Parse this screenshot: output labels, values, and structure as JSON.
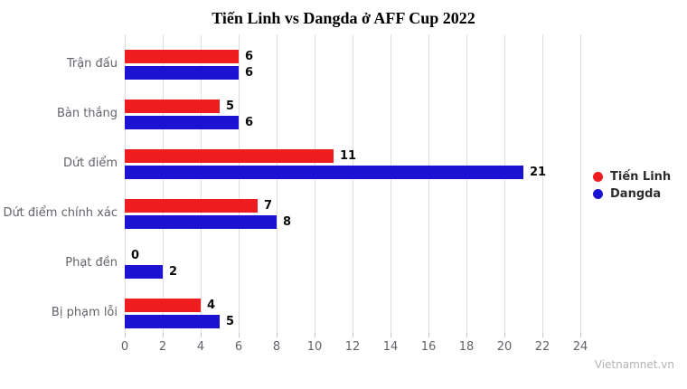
{
  "title": "Tiến Linh vs Dangda ở AFF Cup 2022",
  "watermark": "Vietnamnet.vn",
  "colors": {
    "tien_linh_red": "#ef1c20",
    "dangda_blue": "#1c13d2",
    "gridline": "#dedede",
    "axis_text": "#63636b",
    "value_text": "#0a0a0a"
  },
  "legend": {
    "position": "right",
    "items": [
      {
        "label": "Tiến Linh",
        "color": "#ef1c20"
      },
      {
        "label": "Dangda",
        "color": "#1c13d2"
      }
    ]
  },
  "chart_data": {
    "type": "bar",
    "orientation": "horizontal",
    "title": "Tiến Linh vs Dangda ở AFF Cup 2022",
    "categories": [
      "Trận đấu",
      "Bàn thắng",
      "Dứt điểm",
      "Dứt điểm chính xác",
      "Phạt đền",
      "Bị phạm lỗi"
    ],
    "series": [
      {
        "name": "Tiến Linh",
        "color": "#ef1c20",
        "values": [
          6,
          5,
          11,
          7,
          0,
          4
        ]
      },
      {
        "name": "Dangda",
        "color": "#1c13d2",
        "values": [
          6,
          6,
          21,
          8,
          2,
          5
        ]
      }
    ],
    "xlabel": "",
    "ylabel": "",
    "xlim": [
      0,
      24
    ],
    "xticks": [
      0,
      2,
      4,
      6,
      8,
      10,
      12,
      14,
      16,
      18,
      20,
      22,
      24
    ],
    "grid": true,
    "value_labels": true,
    "legend_position": "right"
  }
}
